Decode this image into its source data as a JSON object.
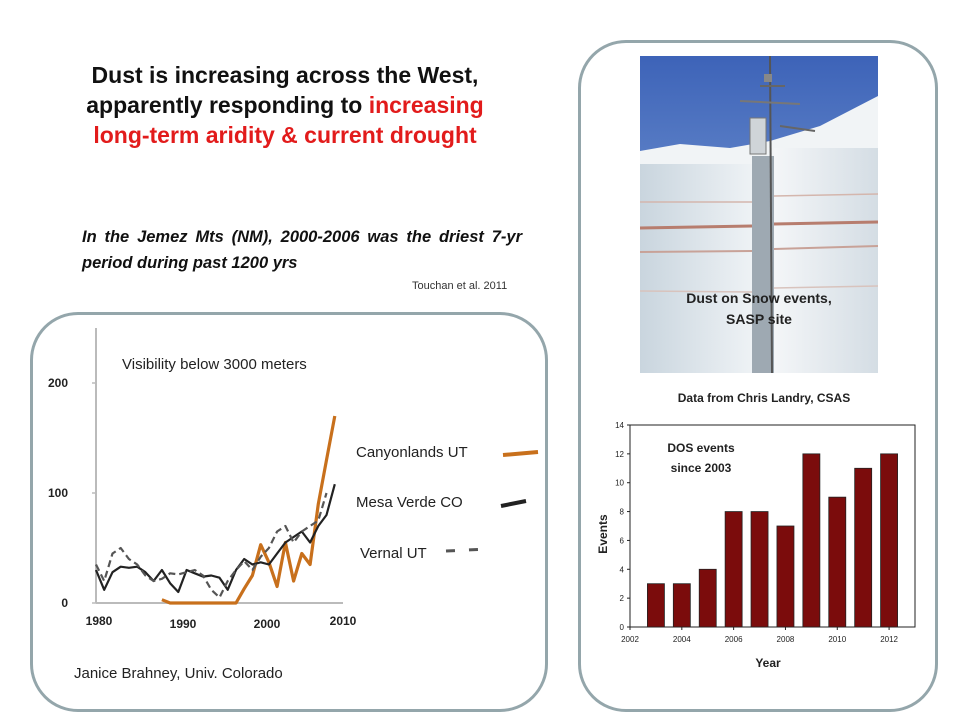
{
  "slide": {
    "title_line1": "Dust is increasing across the West,",
    "title_line2_black": "apparently responding to ",
    "title_line2_red": "increasing",
    "title_line3_red": "long-term aridity & current drought",
    "quote": "In the Jemez Mts (NM), 2000-2006 was the driest 7-yr period during past 1200 yrs",
    "citation": "Touchan et al. 2011",
    "photo_caption_line1": "Dust on Snow events,",
    "photo_caption_line2": "SASP site",
    "right_credit": "Data from Chris Landry, CSAS",
    "left_credit": "Janice Brahney, Univ. Colorado",
    "colors": {
      "accent_red": "#e21b1b",
      "panel_border": "#94a6ab",
      "bar": "#7b0c0c",
      "canyonlands": "#c8701c"
    }
  },
  "chart_data": [
    {
      "type": "line",
      "title": "Visibility below 3000 meters",
      "xlim": [
        1980,
        2010
      ],
      "ylim": [
        0,
        250
      ],
      "x_ticks": [
        1980,
        1990,
        2000,
        2010
      ],
      "x_tick_labels": [
        "1980",
        "1990",
        "2000",
        "2010"
      ],
      "y_ticks": [
        0,
        100,
        200
      ],
      "y_tick_labels": [
        "0",
        "100",
        "200"
      ],
      "series": [
        {
          "name": "Canyonlands UT",
          "color": "#c8701c",
          "style": "solid",
          "points": [
            [
              1988,
              3
            ],
            [
              1989,
              0
            ],
            [
              1990,
              0
            ],
            [
              1991,
              0
            ],
            [
              1992,
              0
            ],
            [
              1993,
              0
            ],
            [
              1994,
              0
            ],
            [
              1995,
              0
            ],
            [
              1996,
              0
            ],
            [
              1997,
              0
            ],
            [
              1998,
              13
            ],
            [
              1999,
              25
            ],
            [
              2000,
              53
            ],
            [
              2001,
              37
            ],
            [
              2002,
              15
            ],
            [
              2003,
              55
            ],
            [
              2004,
              20
            ],
            [
              2005,
              45
            ],
            [
              2006,
              35
            ],
            [
              2007,
              90
            ],
            [
              2008,
              130
            ],
            [
              2009,
              170
            ]
          ]
        },
        {
          "name": "Mesa Verde CO",
          "color": "#222222",
          "style": "solid",
          "points": [
            [
              1980,
              30
            ],
            [
              1981,
              12
            ],
            [
              1982,
              28
            ],
            [
              1983,
              33
            ],
            [
              1984,
              32
            ],
            [
              1985,
              33
            ],
            [
              1986,
              28
            ],
            [
              1987,
              20
            ],
            [
              1988,
              30
            ],
            [
              1989,
              18
            ],
            [
              1990,
              10
            ],
            [
              1991,
              30
            ],
            [
              1992,
              27
            ],
            [
              1993,
              24
            ],
            [
              1994,
              25
            ],
            [
              1995,
              23
            ],
            [
              1996,
              12
            ],
            [
              1997,
              30
            ],
            [
              1998,
              40
            ],
            [
              1999,
              35
            ],
            [
              2000,
              37
            ],
            [
              2001,
              35
            ],
            [
              2002,
              45
            ],
            [
              2003,
              55
            ],
            [
              2004,
              60
            ],
            [
              2005,
              65
            ],
            [
              2006,
              55
            ],
            [
              2007,
              70
            ],
            [
              2008,
              80
            ],
            [
              2009,
              108
            ]
          ]
        },
        {
          "name": "Vernal UT",
          "color": "#555555",
          "style": "dashed",
          "points": [
            [
              1980,
              35
            ],
            [
              1981,
              20
            ],
            [
              1982,
              45
            ],
            [
              1983,
              50
            ],
            [
              1984,
              40
            ],
            [
              1985,
              35
            ],
            [
              1986,
              25
            ],
            [
              1987,
              20
            ],
            [
              1988,
              22
            ],
            [
              1989,
              27
            ],
            [
              1990,
              26
            ],
            [
              1991,
              28
            ],
            [
              1992,
              30
            ],
            [
              1993,
              25
            ],
            [
              1994,
              12
            ],
            [
              1995,
              5
            ],
            [
              1996,
              20
            ],
            [
              1997,
              30
            ],
            [
              1998,
              38
            ],
            [
              1999,
              30
            ],
            [
              2000,
              42
            ],
            [
              2001,
              50
            ],
            [
              2002,
              65
            ],
            [
              2003,
              70
            ],
            [
              2004,
              55
            ],
            [
              2005,
              65
            ],
            [
              2006,
              70
            ],
            [
              2007,
              75
            ],
            [
              2008,
              100
            ]
          ]
        }
      ]
    },
    {
      "type": "bar",
      "title": "DOS events since 2003",
      "xlabel": "Year",
      "ylabel": "Events",
      "xlim": [
        2002,
        2013
      ],
      "ylim": [
        0,
        14
      ],
      "x_ticks": [
        2002,
        2004,
        2006,
        2008,
        2010,
        2012
      ],
      "x_tick_labels": [
        "2002",
        "2004",
        "2006",
        "2008",
        "2010",
        "2012"
      ],
      "y_ticks": [
        0,
        2,
        4,
        6,
        8,
        10,
        12,
        14
      ],
      "y_tick_labels": [
        "0",
        "2",
        "4",
        "6",
        "8",
        "10",
        "12",
        "14"
      ],
      "categories": [
        2003,
        2004,
        2005,
        2006,
        2007,
        2008,
        2009,
        2010,
        2011,
        2012
      ],
      "values": [
        3,
        3,
        4,
        8,
        8,
        7,
        12,
        9,
        11,
        12
      ]
    }
  ]
}
